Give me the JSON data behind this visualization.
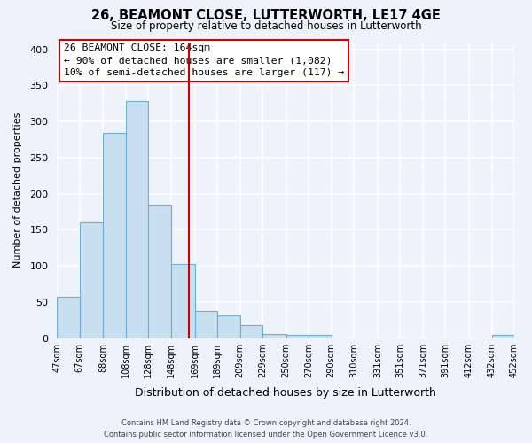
{
  "title": "26, BEAMONT CLOSE, LUTTERWORTH, LE17 4GE",
  "subtitle": "Size of property relative to detached houses in Lutterworth",
  "xlabel": "Distribution of detached houses by size in Lutterworth",
  "ylabel": "Number of detached properties",
  "bar_edges": [
    47,
    67,
    88,
    108,
    128,
    148,
    169,
    189,
    209,
    229,
    250,
    270,
    290,
    310,
    331,
    351,
    371,
    391,
    412,
    432,
    452
  ],
  "bar_heights": [
    57,
    160,
    284,
    328,
    185,
    103,
    37,
    32,
    18,
    6,
    5,
    4,
    0,
    0,
    0,
    0,
    0,
    0,
    0,
    5
  ],
  "tick_labels": [
    "47sqm",
    "67sqm",
    "88sqm",
    "108sqm",
    "128sqm",
    "148sqm",
    "169sqm",
    "189sqm",
    "209sqm",
    "229sqm",
    "250sqm",
    "270sqm",
    "290sqm",
    "310sqm",
    "331sqm",
    "351sqm",
    "371sqm",
    "391sqm",
    "412sqm",
    "432sqm",
    "452sqm"
  ],
  "bar_color": "#c8dff0",
  "bar_edge_color": "#6baed6",
  "vline_x": 164,
  "vline_color": "#cc0000",
  "annotation_line1": "26 BEAMONT CLOSE: 164sqm",
  "annotation_line2": "← 90% of detached houses are smaller (1,082)",
  "annotation_line3": "10% of semi-detached houses are larger (117) →",
  "annotation_box_facecolor": "#ffffff",
  "annotation_box_edgecolor": "#cc0000",
  "ylim": [
    0,
    410
  ],
  "yticks": [
    0,
    50,
    100,
    150,
    200,
    250,
    300,
    350,
    400
  ],
  "footer_line1": "Contains HM Land Registry data © Crown copyright and database right 2024.",
  "footer_line2": "Contains public sector information licensed under the Open Government Licence v3.0.",
  "bg_color": "#eef2fb",
  "grid_color": "#ffffff",
  "figsize": [
    6.0,
    5.0
  ],
  "dpi": 100
}
